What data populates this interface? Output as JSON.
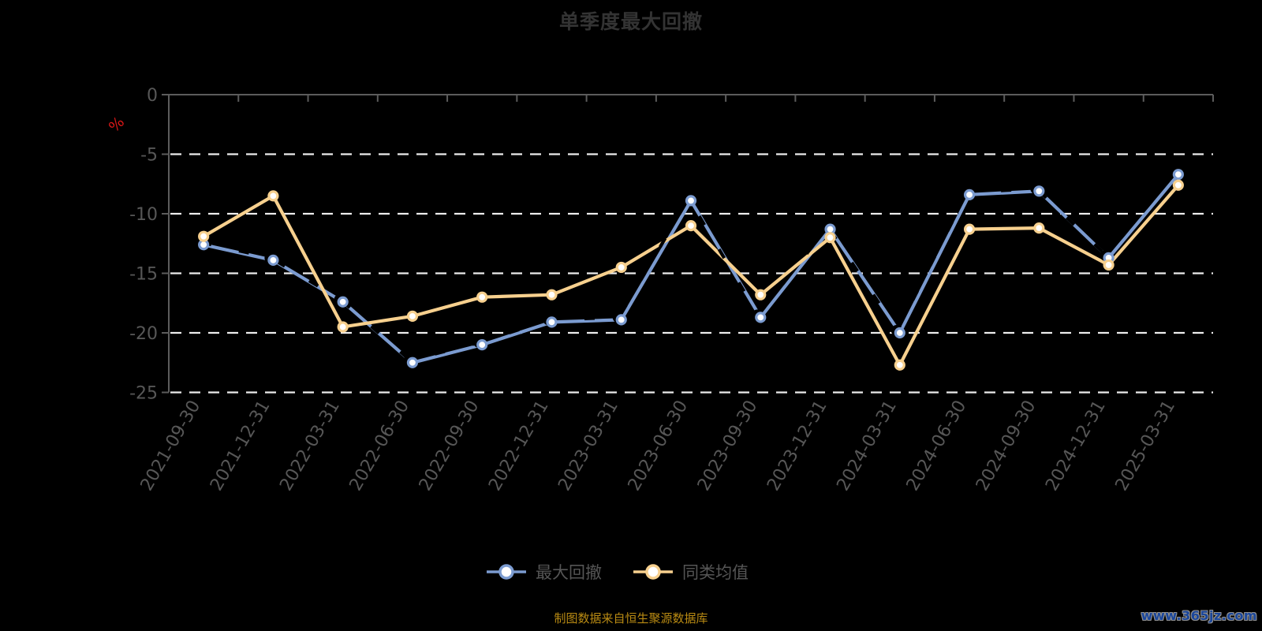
{
  "header": {
    "title": "单季度最大回撤"
  },
  "y_axis": {
    "unit_label": "%",
    "tick_labels": [
      "0",
      "-5",
      "-10",
      "-15",
      "-20",
      "-25"
    ]
  },
  "footer": {
    "source_note": "制图数据来自恒生聚源数据库",
    "watermark": "www.365jz.com"
  },
  "colors": {
    "background": "#000000",
    "title": "#333333",
    "axis_line": "#5c5c5c",
    "tick_label": "#575757",
    "gridline": "#ececec",
    "unit_label": "#d81717",
    "legend_text": "#555555",
    "source_text": "#ba8b13",
    "watermark_text": "#1a469b",
    "marker_fill": "#ffffff",
    "ghost_overlay": "#000000",
    "series_max_drawdown": "#7b9bd0",
    "series_category_average": "#f7d08e"
  },
  "chart_data": {
    "type": "line",
    "title": "单季度最大回撤",
    "xlabel": "",
    "ylabel": "%",
    "ylim": [
      -25,
      0
    ],
    "y_ticks": [
      0,
      -5,
      -10,
      -15,
      -20,
      -25
    ],
    "grid": "horizontal dashed white lines at -5,-10,-15,-20,-25; solid axis at 0 (top) and left",
    "legend_position": "bottom",
    "x_label_rotation_deg": -60,
    "categories": [
      "2021-09-30",
      "2021-12-31",
      "2022-03-31",
      "2022-06-30",
      "2022-09-30",
      "2022-12-31",
      "2023-03-31",
      "2023-06-30",
      "2023-09-30",
      "2023-12-31",
      "2024-03-31",
      "2024-06-30",
      "2024-09-30",
      "2024-12-31",
      "2025-03-31"
    ],
    "series": [
      {
        "name": "最大回撤",
        "color": "#7b9bd0",
        "values": [
          -12.6,
          -13.9,
          -17.4,
          -22.5,
          -21.0,
          -19.1,
          -18.9,
          -8.9,
          -18.7,
          -11.3,
          -20.0,
          -8.4,
          -8.1,
          -13.7,
          -6.7
        ]
      },
      {
        "name": "同类均值",
        "color": "#f7d08e",
        "values": [
          -11.9,
          -8.5,
          -19.5,
          -18.6,
          -17.0,
          -16.8,
          -14.5,
          -11.0,
          -16.8,
          -12.0,
          -22.7,
          -11.3,
          -11.2,
          -14.3,
          -7.6
        ]
      }
    ]
  }
}
